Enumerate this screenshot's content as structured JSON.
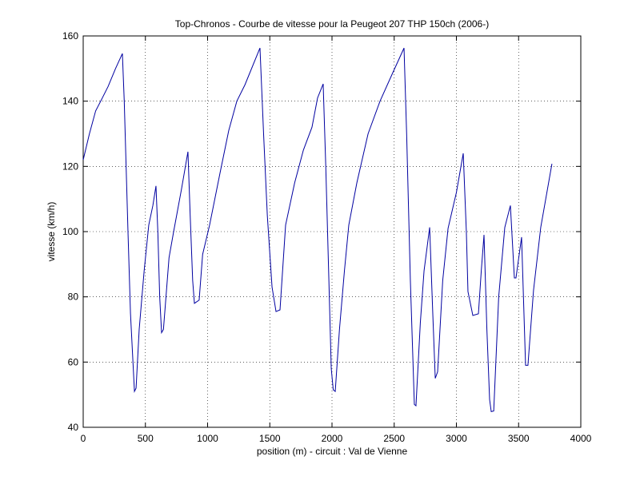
{
  "chart_data": {
    "type": "line",
    "title": "Top-Chronos - Courbe de vitesse pour la Peugeot 207 THP 150ch (2006-)",
    "x_label": "position (m) - circuit : Val de Vienne",
    "y_label": "vitesse (km/h)",
    "xlim": [
      0,
      4000
    ],
    "ylim": [
      40,
      160
    ],
    "xticks": [
      0,
      500,
      1000,
      1500,
      2000,
      2500,
      3000,
      3500,
      4000
    ],
    "yticks": [
      40,
      60,
      80,
      100,
      120,
      140,
      160
    ],
    "grid": true,
    "x": [
      0,
      50,
      100,
      154,
      200,
      260,
      315,
      330,
      360,
      380,
      412,
      425,
      450,
      490,
      527,
      560,
      585,
      600,
      615,
      630,
      645,
      690,
      727,
      790,
      842,
      860,
      880,
      894,
      932,
      960,
      1016,
      1100,
      1170,
      1235,
      1300,
      1421,
      1450,
      1480,
      1518,
      1550,
      1582,
      1627,
      1700,
      1770,
      1839,
      1884,
      1929,
      1950,
      1975,
      1994,
      2010,
      2026,
      2060,
      2100,
      2135,
      2200,
      2290,
      2386,
      2480,
      2579,
      2600,
      2630,
      2662,
      2675,
      2710,
      2740,
      2785,
      2810,
      2830,
      2849,
      2890,
      2933,
      3000,
      3055,
      3080,
      3093,
      3132,
      3177,
      3200,
      3222,
      3245,
      3267,
      3280,
      3300,
      3340,
      3389,
      3434,
      3466,
      3479,
      3524,
      3556,
      3575,
      3620,
      3678,
      3768
    ],
    "series": [
      {
        "name": "vitesse",
        "color": "#0000a0",
        "values": [
          122,
          130,
          137,
          141,
          144.5,
          150,
          154.6,
          140,
          100,
          75,
          51,
          52,
          70,
          88,
          102,
          108,
          114,
          100,
          80,
          69,
          70,
          92,
          100,
          113,
          124.5,
          105,
          85,
          78,
          79,
          93,
          102,
          118,
          131,
          140,
          145,
          156.3,
          130,
          105,
          83,
          75.5,
          76,
          102,
          115,
          125,
          132,
          141,
          145.3,
          120,
          85,
          58,
          51.5,
          51,
          70,
          88,
          102,
          115,
          130,
          140,
          148,
          156.3,
          130,
          85,
          47,
          46.6,
          72,
          88,
          101.3,
          75,
          55,
          57,
          85,
          101,
          112,
          124,
          100,
          81.6,
          74.3,
          74.8,
          88,
          99,
          70,
          48.5,
          44.8,
          45,
          80,
          101.3,
          108,
          85.8,
          85.8,
          98.3,
          59,
          59,
          82,
          101.3,
          120.8
        ]
      }
    ]
  }
}
